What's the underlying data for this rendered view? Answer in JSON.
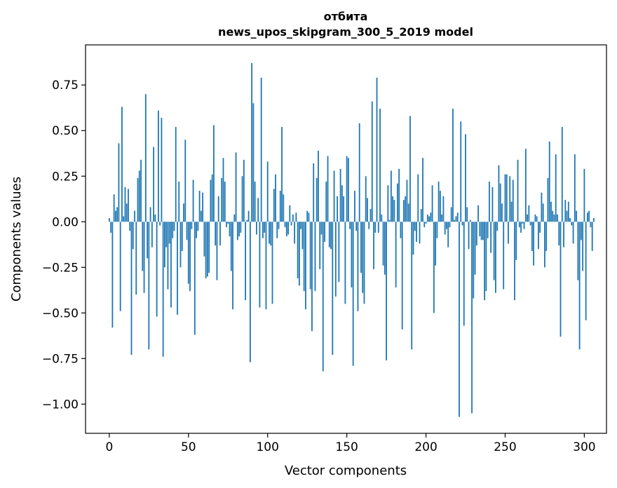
{
  "chart_data": {
    "type": "bar",
    "title": "отбита",
    "subtitle": "news_upos_skipgram_300_5_2019 model",
    "xlabel": "Vector components",
    "ylabel": "Components values",
    "xlim": [
      -15,
      314
    ],
    "ylim": [
      -1.16,
      0.97
    ],
    "xticks": [
      0,
      50,
      100,
      150,
      200,
      250,
      300
    ],
    "xtick_labels": [
      "0",
      "50",
      "100",
      "150",
      "200",
      "250",
      "300"
    ],
    "yticks": [
      0.75,
      0.5,
      0.25,
      0.0,
      -0.25,
      -0.5,
      -0.75,
      -1.0
    ],
    "ytick_labels": [
      "0.75",
      "0.50",
      "0.25",
      "0.00",
      "−0.25",
      "−0.50",
      "−0.75",
      "−1.00"
    ],
    "grid": false,
    "bar_color": "#1f77b4",
    "values": [
      0.02,
      -0.06,
      -0.58,
      0.15,
      0.06,
      0.08,
      0.43,
      -0.49,
      0.63,
      0.03,
      0.19,
      0.1,
      0.18,
      -0.05,
      -0.73,
      -0.15,
      0.06,
      -0.4,
      0.24,
      0.28,
      0.34,
      -0.27,
      -0.39,
      0.7,
      -0.2,
      -0.7,
      0.08,
      -0.14,
      0.41,
      0.04,
      -0.52,
      0.61,
      -0.02,
      0.57,
      -0.74,
      -0.25,
      -0.14,
      -0.37,
      -0.12,
      -0.47,
      -0.09,
      -0.05,
      0.52,
      -0.51,
      0.22,
      -0.25,
      -0.16,
      0.1,
      0.45,
      -0.1,
      -0.34,
      -0.38,
      -0.04,
      0.23,
      -0.62,
      -0.09,
      -0.05,
      0.17,
      0.06,
      0.16,
      -0.19,
      -0.31,
      -0.3,
      -0.28,
      0.23,
      0.26,
      0.53,
      -0.13,
      -0.32,
      0.14,
      -0.13,
      0.24,
      0.35,
      0.22,
      -0.03,
      -0.01,
      -0.08,
      -0.27,
      -0.48,
      0.04,
      0.38,
      -0.1,
      -0.08,
      -0.06,
      0.25,
      0.34,
      -0.43,
      0.01,
      0.06,
      -0.77,
      0.87,
      0.65,
      0.22,
      -0.07,
      0.13,
      -0.47,
      0.79,
      -0.09,
      -0.06,
      -0.48,
      0.33,
      -0.12,
      -0.13,
      -0.45,
      0.18,
      0.26,
      -0.09,
      -0.04,
      0.17,
      0.52,
      0.15,
      -0.03,
      -0.08,
      -0.07,
      0.09,
      -0.02,
      0.04,
      -0.12,
      0.05,
      -0.31,
      -0.35,
      -0.04,
      -0.15,
      -0.38,
      -0.48,
      0.06,
      0.05,
      -0.37,
      -0.6,
      0.32,
      -0.38,
      0.24,
      0.39,
      -0.26,
      -0.07,
      -0.82,
      -0.11,
      0.22,
      0.36,
      -0.14,
      -0.15,
      -0.73,
      0.28,
      -0.41,
      0.14,
      -0.33,
      0.29,
      0.2,
      0.14,
      -0.45,
      0.36,
      0.35,
      -0.04,
      -0.36,
      -0.79,
      0.17,
      -0.05,
      -0.49,
      0.54,
      -0.28,
      -0.39,
      -0.45,
      0.25,
      0.13,
      -0.04,
      0.07,
      0.66,
      -0.26,
      -0.06,
      0.79,
      -0.06,
      0.62,
      0.04,
      -0.24,
      -0.29,
      -0.76,
      0.2,
      0.01,
      0.28,
      0.14,
      0.12,
      -0.36,
      0.21,
      0.29,
      -0.09,
      -0.59,
      0.12,
      0.14,
      0.23,
      0.1,
      0.58,
      -0.7,
      -0.18,
      -0.05,
      -0.11,
      0.26,
      -0.12,
      0.07,
      0.35,
      -0.03,
      -0.01,
      0.04,
      0.03,
      0.05,
      0.2,
      -0.5,
      -0.24,
      -0.09,
      0.22,
      0.17,
      0.04,
      0.14,
      -0.07,
      -0.04,
      -0.14,
      -0.03,
      0.08,
      0.62,
      0.01,
      0.03,
      0.05,
      -1.07,
      0.55,
      -0.02,
      -0.57,
      0.48,
      0.08,
      -0.15,
      0.01,
      -1.05,
      -0.42,
      -0.29,
      -0.13,
      0.09,
      -0.08,
      -0.1,
      -0.1,
      -0.43,
      -0.38,
      -0.09,
      0.22,
      -0.17,
      0.19,
      -0.32,
      -0.39,
      -0.05,
      0.31,
      0.21,
      0.1,
      -0.37,
      0.26,
      0.26,
      -0.12,
      0.25,
      0.11,
      0.23,
      -0.43,
      -0.21,
      0.34,
      -0.03,
      -0.06,
      -0.01,
      -0.04,
      0.4,
      0.04,
      0.09,
      -0.02,
      -0.16,
      -0.24,
      0.04,
      0.03,
      -0.15,
      -0.06,
      0.16,
      0.1,
      -0.25,
      -0.16,
      0.24,
      0.44,
      0.11,
      0.06,
      0.04,
      0.37,
      0.04,
      -0.13,
      -0.63,
      0.52,
      -0.14,
      0.12,
      0.06,
      0.11,
      0.02,
      -0.02,
      -0.12,
      0.37,
      0.06,
      -0.32,
      -0.7,
      -0.1,
      -0.27,
      0.29,
      -0.54,
      0.05,
      0.06,
      -0.03,
      -0.16,
      0.02
    ]
  }
}
